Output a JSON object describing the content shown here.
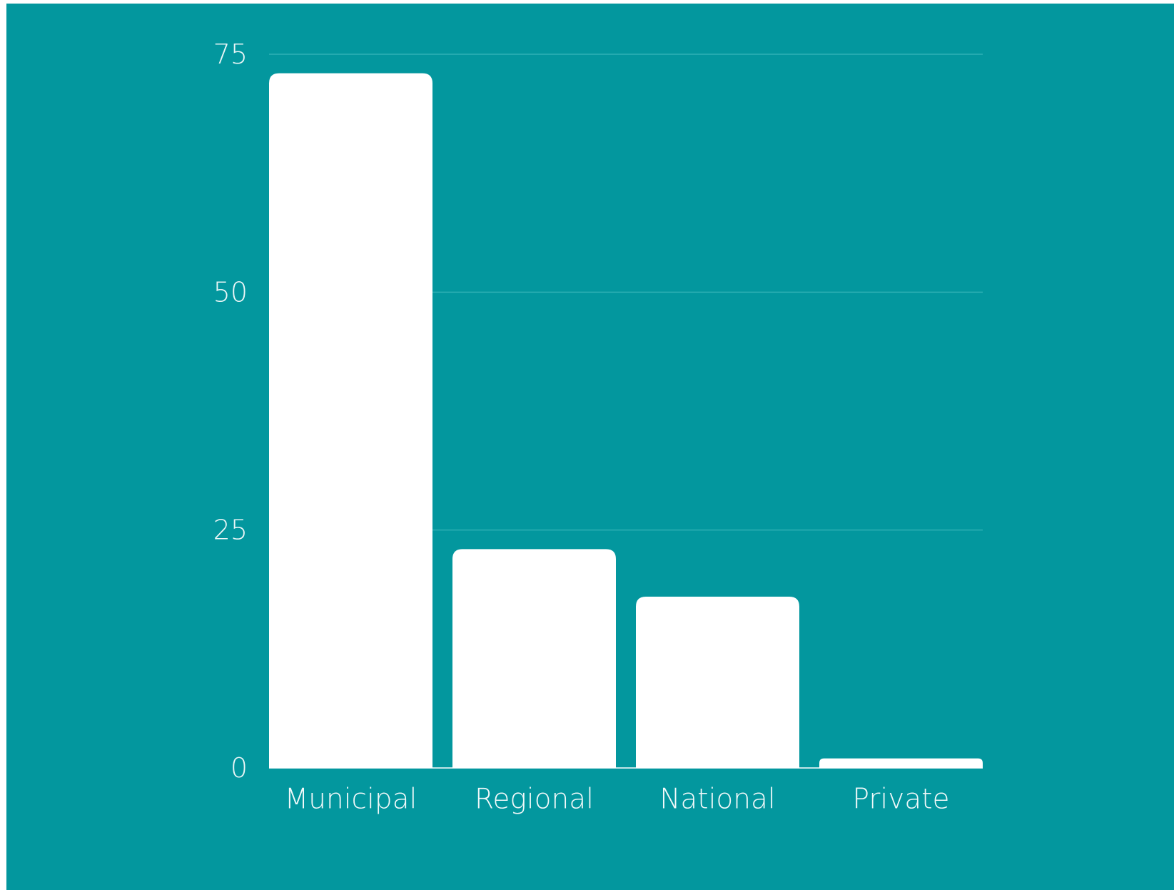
{
  "colors": {
    "background": "#03979e",
    "bar": "#ffffff",
    "grid": "#2fb0b5"
  },
  "chart_data": {
    "type": "bar",
    "categories": [
      "Municipal",
      "Regional",
      "National",
      "Private"
    ],
    "values": [
      73,
      23,
      18,
      1
    ],
    "title": "",
    "xlabel": "",
    "ylabel": "",
    "ylim": [
      0,
      75
    ],
    "yticks": [
      0,
      25,
      50,
      75
    ],
    "ytick_labels": [
      "0",
      "25",
      "50",
      "75"
    ],
    "grid": true,
    "legend": "none"
  }
}
